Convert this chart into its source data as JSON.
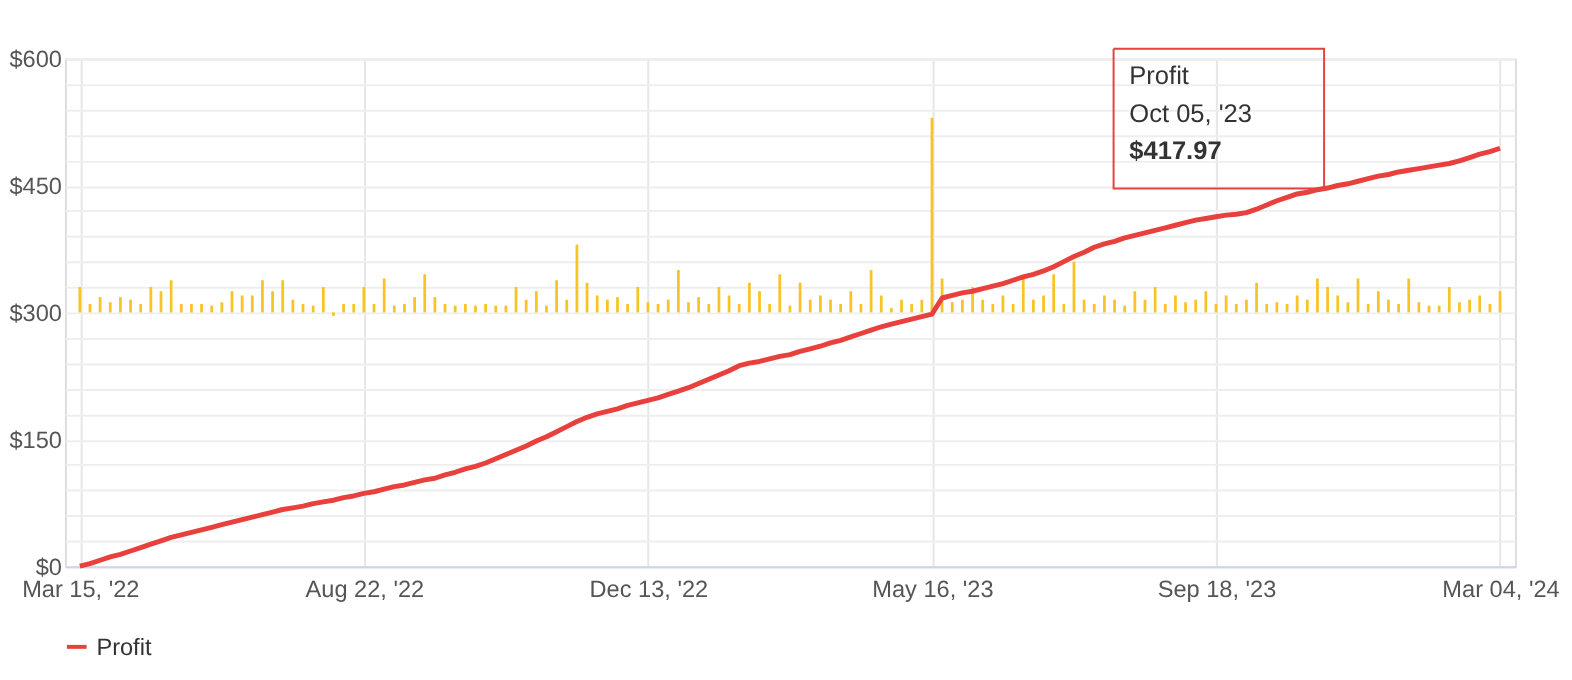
{
  "chart_data": {
    "type": "line",
    "categories": [
      "Mar 15, '22",
      null,
      null,
      null,
      null,
      null,
      null,
      null,
      null,
      null,
      null,
      null,
      null,
      null,
      null,
      null,
      null,
      null,
      null,
      null,
      null,
      null,
      null,
      null,
      null,
      null,
      null,
      null,
      "Aug 22, '22",
      null,
      null,
      null,
      null,
      null,
      null,
      null,
      null,
      null,
      null,
      null,
      null,
      null,
      null,
      null,
      null,
      null,
      null,
      null,
      null,
      null,
      null,
      null,
      null,
      null,
      null,
      null,
      "Dec 13, '22",
      null,
      null,
      null,
      null,
      null,
      null,
      null,
      null,
      null,
      null,
      null,
      null,
      null,
      null,
      null,
      null,
      null,
      null,
      null,
      null,
      null,
      null,
      null,
      null,
      null,
      null,
      null,
      "May 16, '23",
      null,
      null,
      null,
      null,
      null,
      null,
      null,
      null,
      null,
      null,
      null,
      null,
      null,
      null,
      null,
      null,
      null,
      null,
      null,
      null,
      null,
      null,
      null,
      null,
      null,
      null,
      null,
      "Sep 18, '23",
      null,
      null,
      null,
      null,
      null,
      null,
      null,
      null,
      null,
      null,
      null,
      null,
      null,
      null,
      null,
      null,
      null,
      null,
      null,
      null,
      null,
      null,
      null,
      null,
      null,
      null,
      null,
      "Mar 04, '24"
    ],
    "series": [
      {
        "type": "bar",
        "color": "#f7c325",
        "base": [
          300,
          300,
          300,
          300,
          300,
          300,
          300,
          300,
          300,
          300,
          300,
          300,
          300,
          300,
          300,
          300,
          300,
          300,
          300,
          300,
          300,
          300,
          300,
          300,
          300,
          300,
          300,
          300,
          300,
          300,
          300,
          300,
          300,
          300,
          300,
          300,
          300,
          300,
          300,
          300,
          300,
          300,
          300,
          300,
          300,
          300,
          300,
          300,
          300,
          300,
          300,
          300,
          300,
          300,
          300,
          300,
          300,
          300,
          300,
          300,
          300,
          300,
          300,
          300,
          300,
          300,
          300,
          300,
          300,
          300,
          300,
          300,
          300,
          300,
          300,
          300,
          300,
          300,
          300,
          300,
          300,
          300,
          300,
          300,
          300,
          300,
          300,
          300,
          300,
          300,
          300,
          300,
          300,
          300,
          300,
          300,
          300,
          300,
          300,
          300,
          300,
          300,
          300,
          300,
          300,
          300,
          300,
          300,
          300,
          300,
          300,
          300,
          300,
          300,
          300,
          300,
          300,
          300,
          300,
          300,
          300,
          300,
          300,
          300,
          300,
          300,
          300,
          300,
          300,
          300,
          300,
          300,
          300,
          300,
          300,
          300,
          300,
          300,
          300,
          300,
          300
        ],
        "values": [
          30,
          10,
          18,
          12,
          18,
          15,
          10,
          30,
          25,
          38,
          10,
          10,
          10,
          8,
          12,
          25,
          20,
          20,
          38,
          25,
          38,
          15,
          10,
          8,
          30,
          -4,
          10,
          10,
          30,
          10,
          40,
          8,
          10,
          18,
          45,
          18,
          10,
          8,
          10,
          8,
          10,
          8,
          8,
          30,
          15,
          25,
          8,
          38,
          15,
          80,
          35,
          20,
          15,
          18,
          10,
          30,
          12,
          10,
          15,
          50,
          12,
          18,
          10,
          30,
          20,
          10,
          35,
          25,
          10,
          45,
          8,
          35,
          15,
          20,
          15,
          10,
          25,
          10,
          50,
          20,
          5,
          15,
          10,
          15,
          230,
          40,
          12,
          15,
          30,
          15,
          10,
          20,
          10,
          40,
          15,
          20,
          45,
          10,
          60,
          15,
          10,
          20,
          15,
          8,
          25,
          15,
          30,
          10,
          20,
          12,
          15,
          25,
          10,
          20,
          10,
          15,
          35,
          10,
          12,
          10,
          20,
          15,
          40,
          30,
          20,
          12,
          40,
          10,
          25,
          15,
          10,
          40,
          12,
          8,
          8,
          30,
          12,
          15,
          20,
          10,
          25
        ]
      },
      {
        "name": "Profit",
        "color": "#e8403c",
        "values": [
          0,
          3,
          7,
          11,
          14,
          18,
          22,
          26,
          30,
          34,
          37,
          40,
          43,
          46,
          49,
          52,
          55,
          58,
          61,
          64,
          67,
          69,
          71,
          74,
          76,
          78,
          81,
          83,
          86,
          88,
          91,
          94,
          96,
          99,
          102,
          104,
          108,
          111,
          115,
          118,
          122,
          127,
          132,
          137,
          142,
          148,
          153,
          159,
          165,
          171,
          176,
          180,
          183,
          186,
          190,
          193,
          196,
          199,
          203,
          207,
          211,
          216,
          221,
          226,
          231,
          237,
          240,
          242,
          245,
          248,
          250,
          254,
          257,
          260,
          264,
          267,
          271,
          275,
          279,
          283,
          286,
          289,
          292,
          295,
          298,
          317,
          320,
          323,
          325,
          328,
          331,
          334,
          338,
          342,
          345,
          349,
          354,
          360,
          366,
          371,
          377,
          381,
          384,
          388,
          391,
          394,
          397,
          400,
          403,
          406,
          409,
          411,
          413,
          415,
          416,
          417.97,
          422,
          427,
          432,
          436,
          440,
          442,
          445,
          447,
          450,
          452,
          455,
          458,
          461,
          463,
          466,
          468,
          470,
          472,
          474,
          476,
          479,
          483,
          487,
          490,
          494
        ]
      }
    ],
    "ylim": [
      0,
      600
    ],
    "yticks": [
      {
        "value": 0,
        "label": "$0"
      },
      {
        "value": 30,
        "label": null
      },
      {
        "value": 60,
        "label": null
      },
      {
        "value": 90,
        "label": null
      },
      {
        "value": 120,
        "label": null
      },
      {
        "value": 150,
        "label": "$150"
      },
      {
        "value": 180,
        "label": null
      },
      {
        "value": 210,
        "label": null
      },
      {
        "value": 240,
        "label": null
      },
      {
        "value": 270,
        "label": null
      },
      {
        "value": 300,
        "label": "$300"
      },
      {
        "value": 330,
        "label": null
      },
      {
        "value": 360,
        "label": null
      },
      {
        "value": 390,
        "label": null
      },
      {
        "value": 420,
        "label": null
      },
      {
        "value": 450,
        "label": "$450"
      },
      {
        "value": 480,
        "label": null
      },
      {
        "value": 510,
        "label": null
      },
      {
        "value": 540,
        "label": null
      },
      {
        "value": 570,
        "label": null
      },
      {
        "value": 600,
        "label": "$600"
      }
    ],
    "grid": true,
    "legend": "bottom",
    "line_style": "solid",
    "annotations": [
      "Profit",
      "Oct 05, '23",
      "$417.97"
    ]
  }
}
